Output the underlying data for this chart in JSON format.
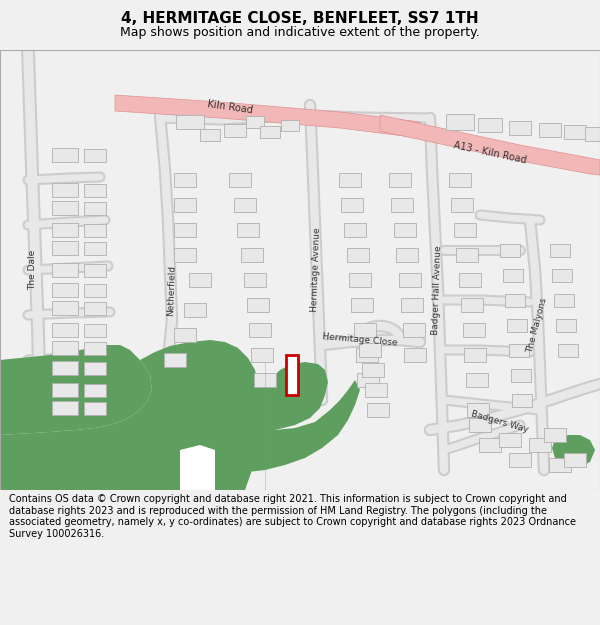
{
  "title": "4, HERMITAGE CLOSE, BENFLEET, SS7 1TH",
  "subtitle": "Map shows position and indicative extent of the property.",
  "footer": "Contains OS data © Crown copyright and database right 2021. This information is subject to Crown copyright and database rights 2023 and is reproduced with the permission of HM Land Registry. The polygons (including the associated geometry, namely x, y co-ordinates) are subject to Crown copyright and database rights 2023 Ordnance Survey 100026316.",
  "bg_color": "#f0f0f0",
  "map_bg": "#ffffff",
  "road_fill": "#e8e8e8",
  "road_stroke": "#cccccc",
  "major_road_fill": "#f2b8b8",
  "major_road_stroke": "#e09090",
  "green_fill": "#5e9e5e",
  "red_color": "#cc0000",
  "red_lw": 2.0,
  "building_fill": "#e8e8e8",
  "building_stroke": "#b0b0b0",
  "title_fontsize": 11,
  "subtitle_fontsize": 9,
  "footer_fontsize": 7.0,
  "label_fontsize": 6.5,
  "label_color": "#333333"
}
